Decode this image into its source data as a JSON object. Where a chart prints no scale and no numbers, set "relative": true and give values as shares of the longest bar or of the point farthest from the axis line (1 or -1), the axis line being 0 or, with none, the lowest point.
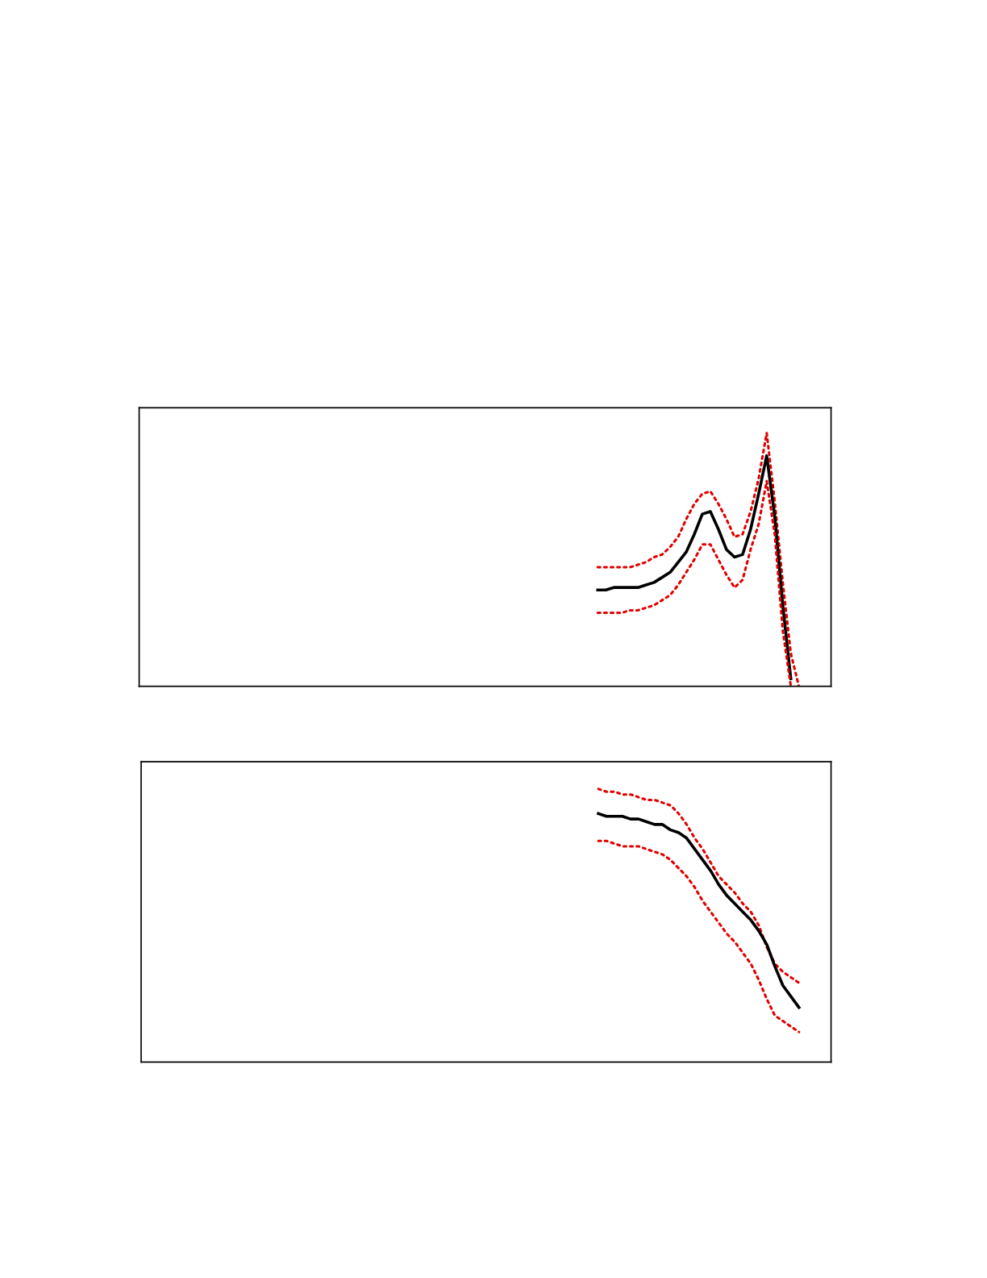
{
  "chart_data": [
    {
      "type": "line",
      "relative": true,
      "categories": [
        null,
        null,
        null,
        null,
        null,
        null,
        null,
        null,
        null,
        null,
        null,
        null,
        null,
        null,
        null,
        null,
        null,
        null,
        null,
        null,
        null,
        null,
        null,
        null,
        null,
        null,
        null,
        null,
        null,
        null,
        null,
        null,
        null,
        null,
        null,
        null,
        null,
        null,
        null,
        null,
        null,
        null,
        null,
        null,
        null,
        null,
        null,
        null,
        null,
        null,
        null,
        null,
        null,
        null,
        null,
        null,
        null,
        null,
        null,
        null,
        null,
        null,
        null,
        null,
        null,
        null,
        null,
        null,
        null,
        null,
        null,
        null,
        null,
        null,
        null,
        null,
        null,
        null,
        null,
        null,
        null,
        null,
        null,
        null,
        null,
        null,
        null
      ],
      "series": [
        {
          "color": "#e00000",
          "line_style": "dotted",
          "values": [
            null,
            null,
            null,
            null,
            null,
            null,
            null,
            null,
            null,
            null,
            null,
            null,
            null,
            null,
            null,
            null,
            null,
            null,
            null,
            null,
            null,
            null,
            null,
            null,
            null,
            null,
            null,
            null,
            null,
            null,
            null,
            null,
            null,
            null,
            null,
            null,
            null,
            null,
            null,
            null,
            null,
            null,
            null,
            null,
            null,
            null,
            null,
            null,
            null,
            null,
            null,
            null,
            null,
            null,
            null,
            null,
            null,
            0.47,
            0.47,
            0.47,
            0.47,
            0.47,
            0.48,
            0.49,
            0.51,
            0.52,
            0.55,
            0.59,
            0.66,
            0.72,
            0.76,
            0.77,
            0.72,
            0.66,
            0.59,
            0.6,
            0.69,
            0.82,
            1.0,
            0.73,
            0.41,
            0.13,
            0,
            null,
            null,
            null,
            null
          ]
        },
        {
          "color": "#000000",
          "line_style": "solid",
          "values": [
            null,
            null,
            null,
            null,
            null,
            null,
            null,
            null,
            null,
            null,
            null,
            null,
            null,
            null,
            null,
            null,
            null,
            null,
            null,
            null,
            null,
            null,
            null,
            null,
            null,
            null,
            null,
            null,
            null,
            null,
            null,
            null,
            null,
            null,
            null,
            null,
            null,
            null,
            null,
            null,
            null,
            null,
            null,
            null,
            null,
            null,
            null,
            null,
            null,
            null,
            null,
            null,
            null,
            null,
            null,
            null,
            null,
            0.38,
            0.38,
            0.39,
            0.39,
            0.39,
            0.39,
            0.4,
            0.41,
            0.43,
            0.45,
            0.49,
            0.53,
            0.6,
            0.68,
            0.69,
            0.62,
            0.54,
            0.51,
            0.52,
            0.62,
            0.76,
            0.91,
            0.67,
            0.32,
            0.03,
            null,
            null,
            null,
            null,
            null
          ]
        },
        {
          "color": "#e00000",
          "line_style": "dotted",
          "values": [
            null,
            null,
            null,
            null,
            null,
            null,
            null,
            null,
            null,
            null,
            null,
            null,
            null,
            null,
            null,
            null,
            null,
            null,
            null,
            null,
            null,
            null,
            null,
            null,
            null,
            null,
            null,
            null,
            null,
            null,
            null,
            null,
            null,
            null,
            null,
            null,
            null,
            null,
            null,
            null,
            null,
            null,
            null,
            null,
            null,
            null,
            null,
            null,
            null,
            null,
            null,
            null,
            null,
            null,
            null,
            null,
            null,
            0.29,
            0.29,
            0.29,
            0.29,
            0.3,
            0.3,
            0.31,
            0.32,
            0.34,
            0.36,
            0.4,
            0.45,
            0.5,
            0.56,
            0.56,
            0.5,
            0.44,
            0.39,
            0.42,
            0.54,
            0.64,
            0.81,
            0.6,
            0.22,
            0,
            null,
            null,
            null,
            null,
            null
          ]
        }
      ]
    },
    {
      "type": "line",
      "relative": true,
      "categories": [
        null,
        null,
        null,
        null,
        null,
        null,
        null,
        null,
        null,
        null,
        null,
        null,
        null,
        null,
        null,
        null,
        null,
        null,
        null,
        null,
        null,
        null,
        null,
        null,
        null,
        null,
        null,
        null,
        null,
        null,
        null,
        null,
        null,
        null,
        null,
        null,
        null,
        null,
        null,
        null,
        null,
        null,
        null,
        null,
        null,
        null,
        null,
        null,
        null,
        null,
        null,
        null,
        null,
        null,
        null,
        null,
        null,
        null,
        null,
        null,
        null,
        null,
        null,
        null,
        null,
        null,
        null,
        null,
        null,
        null,
        null,
        null,
        null,
        null,
        null,
        null,
        null,
        null,
        null,
        null,
        null,
        null,
        null,
        null,
        null,
        null,
        null
      ],
      "series": [
        {
          "color": "#e00000",
          "line_style": "dotted",
          "values": [
            null,
            null,
            null,
            null,
            null,
            null,
            null,
            null,
            null,
            null,
            null,
            null,
            null,
            null,
            null,
            null,
            null,
            null,
            null,
            null,
            null,
            null,
            null,
            null,
            null,
            null,
            null,
            null,
            null,
            null,
            null,
            null,
            null,
            null,
            null,
            null,
            null,
            null,
            null,
            null,
            null,
            null,
            null,
            null,
            null,
            null,
            null,
            null,
            null,
            null,
            null,
            null,
            null,
            null,
            null,
            null,
            null,
            1.0,
            0.99,
            0.99,
            0.98,
            0.98,
            0.97,
            0.96,
            0.96,
            0.95,
            0.94,
            0.91,
            0.87,
            0.82,
            0.78,
            0.73,
            0.68,
            0.65,
            0.62,
            0.58,
            0.55,
            0.5,
            0.42,
            0.36,
            0.33,
            0.31,
            0.29,
            null,
            null,
            null,
            null
          ]
        },
        {
          "color": "#000000",
          "line_style": "solid",
          "values": [
            null,
            null,
            null,
            null,
            null,
            null,
            null,
            null,
            null,
            null,
            null,
            null,
            null,
            null,
            null,
            null,
            null,
            null,
            null,
            null,
            null,
            null,
            null,
            null,
            null,
            null,
            null,
            null,
            null,
            null,
            null,
            null,
            null,
            null,
            null,
            null,
            null,
            null,
            null,
            null,
            null,
            null,
            null,
            null,
            null,
            null,
            null,
            null,
            null,
            null,
            null,
            null,
            null,
            null,
            null,
            null,
            null,
            0.91,
            0.9,
            0.9,
            0.9,
            0.89,
            0.89,
            0.88,
            0.87,
            0.87,
            0.85,
            0.84,
            0.82,
            0.78,
            0.74,
            0.7,
            0.65,
            0.61,
            0.58,
            0.55,
            0.52,
            0.48,
            0.43,
            0.35,
            0.28,
            0.24,
            0.2,
            null,
            null,
            null,
            null
          ]
        },
        {
          "color": "#e00000",
          "line_style": "dotted",
          "values": [
            null,
            null,
            null,
            null,
            null,
            null,
            null,
            null,
            null,
            null,
            null,
            null,
            null,
            null,
            null,
            null,
            null,
            null,
            null,
            null,
            null,
            null,
            null,
            null,
            null,
            null,
            null,
            null,
            null,
            null,
            null,
            null,
            null,
            null,
            null,
            null,
            null,
            null,
            null,
            null,
            null,
            null,
            null,
            null,
            null,
            null,
            null,
            null,
            null,
            null,
            null,
            null,
            null,
            null,
            null,
            null,
            null,
            0.81,
            0.81,
            0.8,
            0.79,
            0.79,
            0.79,
            0.78,
            0.77,
            0.76,
            0.74,
            0.71,
            0.68,
            0.64,
            0.59,
            0.55,
            0.51,
            0.47,
            0.44,
            0.4,
            0.36,
            0.3,
            0.23,
            0.17,
            0.15,
            0.13,
            0.11,
            null,
            null,
            null,
            null
          ]
        }
      ]
    }
  ]
}
